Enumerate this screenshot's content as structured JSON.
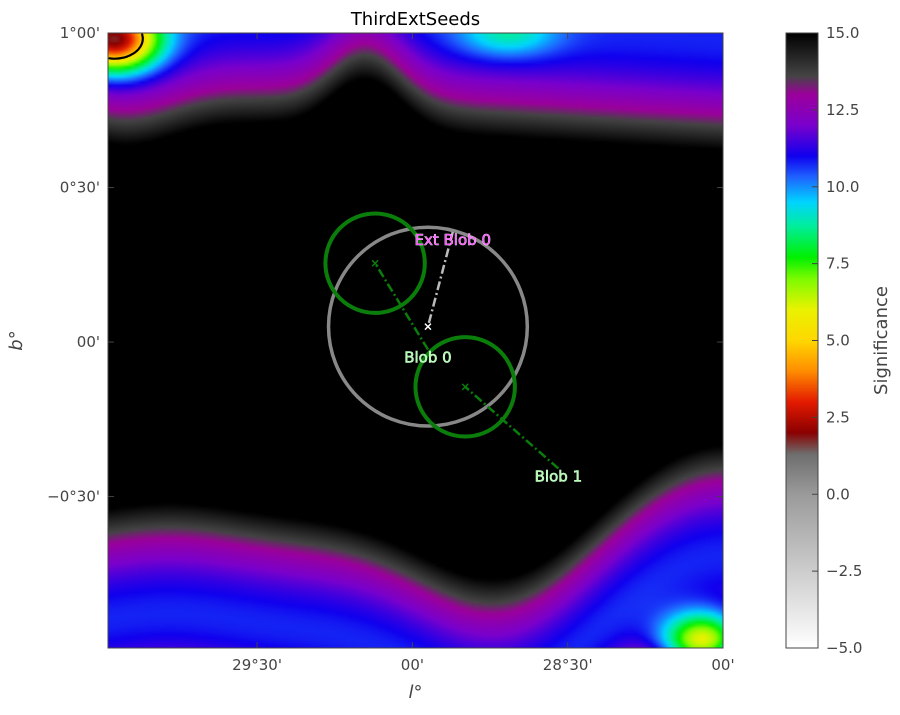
{
  "chart_data": {
    "type": "heatmap",
    "title": "ThirdExtSeeds",
    "xlabel": "l°",
    "ylabel": "b°",
    "x_axis": {
      "direction": "decreasing",
      "ticks": [
        {
          "value": 29.5,
          "label": "29°30'"
        },
        {
          "value": 29.0,
          "label": "00'"
        },
        {
          "value": 28.5,
          "label": "28°30'"
        },
        {
          "value": 28.0,
          "label": "00'"
        }
      ],
      "range": [
        29.98,
        28.0
      ]
    },
    "y_axis": {
      "ticks": [
        {
          "value": 1.0,
          "label": "1°00'"
        },
        {
          "value": 0.5,
          "label": "0°30'"
        },
        {
          "value": 0.0,
          "label": "00'"
        },
        {
          "value": -0.5,
          "label": "−0°30'"
        }
      ],
      "range": [
        -0.99,
        1.0
      ]
    },
    "colorbar": {
      "label": "Significance",
      "range": [
        -5.0,
        15.0
      ],
      "ticks": [
        {
          "value": 15.0,
          "label": "15.0"
        },
        {
          "value": 12.5,
          "label": "12.5"
        },
        {
          "value": 10.0,
          "label": "10.0"
        },
        {
          "value": 7.5,
          "label": "7.5"
        },
        {
          "value": 5.0,
          "label": "5.0"
        },
        {
          "value": 2.5,
          "label": "2.5"
        },
        {
          "value": 0.0,
          "label": "0.0"
        },
        {
          "value": -2.5,
          "label": "−2.5"
        },
        {
          "value": -5.0,
          "label": "−5.0"
        }
      ],
      "colormap": [
        {
          "value": -5.0,
          "color": "#ffffff"
        },
        {
          "value": 0.0,
          "color": "#9a9a9a"
        },
        {
          "value": 1.3,
          "color": "#6e6e6e"
        },
        {
          "value": 2.0,
          "color": "#8a0000"
        },
        {
          "value": 3.0,
          "color": "#e41a00"
        },
        {
          "value": 4.0,
          "color": "#ff8c00"
        },
        {
          "value": 5.0,
          "color": "#ffd700"
        },
        {
          "value": 6.0,
          "color": "#eaf200"
        },
        {
          "value": 7.0,
          "color": "#7dfb00"
        },
        {
          "value": 7.7,
          "color": "#00f000"
        },
        {
          "value": 8.7,
          "color": "#00ee99"
        },
        {
          "value": 9.5,
          "color": "#00d4ff"
        },
        {
          "value": 10.3,
          "color": "#1e64ff"
        },
        {
          "value": 11.0,
          "color": "#1000ee"
        },
        {
          "value": 12.0,
          "color": "#7a00cc"
        },
        {
          "value": 13.0,
          "color": "#9b009b"
        },
        {
          "value": 13.6,
          "color": "#444444"
        },
        {
          "value": 15.0,
          "color": "#000000"
        }
      ]
    },
    "seeds": [
      {
        "name": "Blob 0",
        "l": 29.12,
        "b": 0.255,
        "radius_deg": 0.16,
        "color": "#0a7d0a"
      },
      {
        "name": "Blob 1",
        "l": 28.83,
        "b": -0.145,
        "radius_deg": 0.16,
        "color": "#0a7d0a"
      }
    ],
    "ext_seeds": [
      {
        "name": "Ext Blob 0",
        "l": 28.95,
        "b": 0.05,
        "radius_deg": 0.32,
        "color": "#888888"
      }
    ],
    "labels": [
      {
        "text": "Ext Blob 0",
        "l": 28.87,
        "b": 0.33,
        "text_color": "#ff55ff",
        "points_to": {
          "l": 28.95,
          "b": 0.05
        },
        "line_color": "#bbbbbb"
      },
      {
        "text": "Blob 0",
        "l": 28.95,
        "b": -0.05,
        "text_color": "#aaffaa",
        "points_to": {
          "l": 29.12,
          "b": 0.255
        },
        "line_color": "#0a7d0a"
      },
      {
        "text": "Blob 1",
        "l": 28.53,
        "b": -0.435,
        "text_color": "#aaffaa",
        "points_to": {
          "l": 28.83,
          "b": -0.145
        },
        "line_color": "#0a7d0a"
      }
    ],
    "contour_levels": [
      5.0
    ],
    "field_description_sources": {
      "black_core": "significance >= 15 across central region",
      "upper_band_b": [
        0.55,
        0.75
      ],
      "lower_band_b": [
        -0.45,
        -0.7
      ]
    }
  }
}
